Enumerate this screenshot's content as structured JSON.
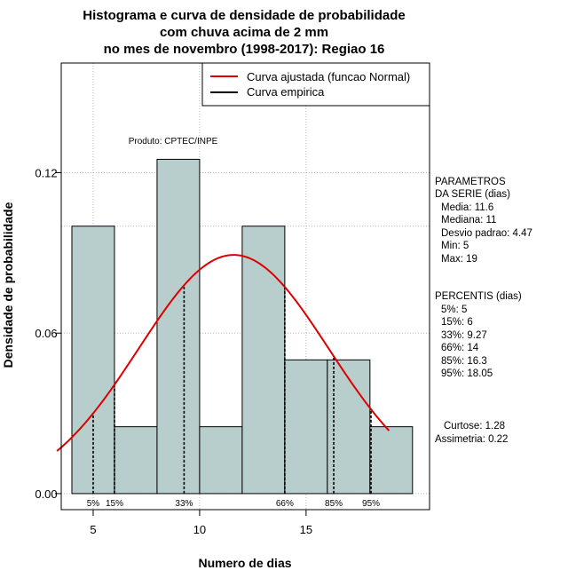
{
  "chart_data": {
    "type": "bar",
    "title_lines": [
      "Histograma e curva de densidade de probabilidade",
      "com chuva acima de 2 mm",
      "no mes de novembro (1998-2017): Regiao 16"
    ],
    "xlabel": "Numero de dias",
    "ylabel": "Densidade de probabilidade",
    "xlim": [
      3.5,
      20.8
    ],
    "ylim": [
      -0.006,
      0.161
    ],
    "x_ticks": [
      5,
      10,
      15
    ],
    "y_ticks": [
      0.0,
      0.06,
      0.12
    ],
    "y_tick_labels": [
      "0.00",
      "0.06",
      "0.12"
    ],
    "grid": true,
    "bins": [
      {
        "from": 4,
        "to": 6,
        "density": 0.1
      },
      {
        "from": 6,
        "to": 8,
        "density": 0.025
      },
      {
        "from": 8,
        "to": 10,
        "density": 0.125
      },
      {
        "from": 10,
        "to": 12,
        "density": 0.025
      },
      {
        "from": 12,
        "to": 14,
        "density": 0.1
      },
      {
        "from": 14,
        "to": 16,
        "density": 0.05
      },
      {
        "from": 16,
        "to": 18,
        "density": 0.05
      },
      {
        "from": 18,
        "to": 20,
        "density": 0.025
      }
    ],
    "bar_color": "#b8cecd",
    "fitted_curve": {
      "name": "Curva ajustada (funcao Normal)",
      "distribution": "normal",
      "mean": 11.6,
      "sd": 4.47,
      "x_from": 3.3,
      "x_to": 18.9,
      "color": "#dd0000"
    },
    "empirical_curve": {
      "name": "Curva empirica",
      "color": "#000000"
    },
    "legend_position": "top-right",
    "percentile_lines": [
      {
        "label": "5%",
        "x": 5
      },
      {
        "label": "15%",
        "x": 6
      },
      {
        "label": "33%",
        "x": 9.27
      },
      {
        "label": "66%",
        "x": 14
      },
      {
        "label": "85%",
        "x": 16.3
      },
      {
        "label": "95%",
        "x": 18.05
      }
    ],
    "annotation": "Produto: CPTEC/INPE"
  },
  "stats_panel": {
    "parametros_title_1": "PARAMETROS",
    "parametros_title_2": "DA SERIE (dias)",
    "parametros": [
      "Media: 11.6",
      "Mediana: 11",
      "Desvio padrao: 4.47",
      "Min: 5",
      "Max: 19"
    ],
    "percentis_title": "PERCENTIS (dias)",
    "percentis": [
      "5%: 5",
      "15%: 6",
      "33%: 9.27",
      "66%: 14",
      "85%: 16.3",
      "95%: 18.05"
    ],
    "curtose": "Curtose: 1.28",
    "assimetria": "Assimetria: 0.22"
  }
}
